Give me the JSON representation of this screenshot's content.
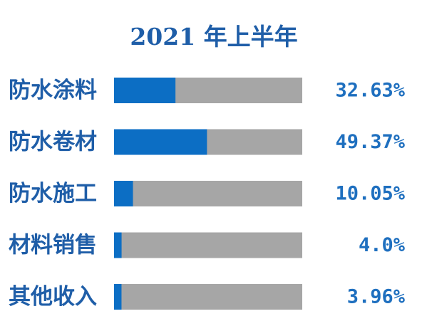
{
  "colors": {
    "title": "#1f5ea8",
    "category_label": "#1f5ea8",
    "value_label": "#1e6fbf",
    "bar_fill": "#0c6ec4",
    "bar_track": "#a6a6a6"
  },
  "chart_data": {
    "type": "bar",
    "orientation": "horizontal",
    "title": "2021 年上半年",
    "xlabel": "",
    "ylabel": "",
    "categories": [
      "防水涂料",
      "防水卷材",
      "防水施工",
      "材料销售",
      "其他收入"
    ],
    "values": [
      32.63,
      49.37,
      10.05,
      4.0,
      3.96
    ],
    "value_labels": [
      "32.63%",
      "49.37%",
      "10.05%",
      "4.0%",
      "3.96%"
    ],
    "xlim": [
      0,
      100
    ],
    "grid": false,
    "legend": "none"
  }
}
